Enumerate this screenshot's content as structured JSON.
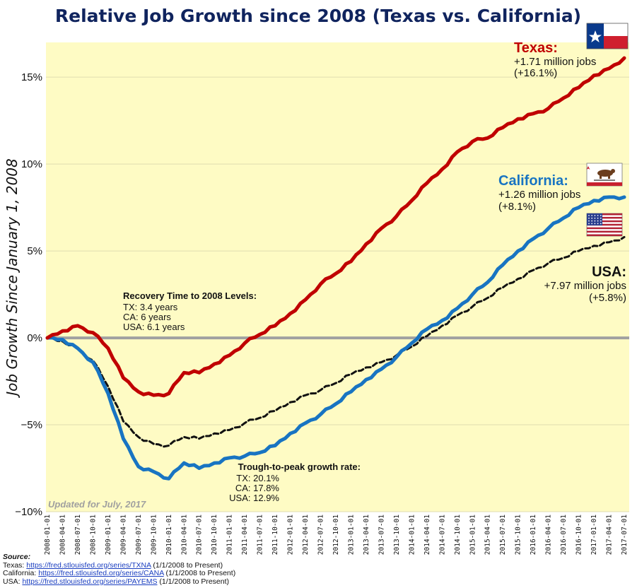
{
  "chart_data": {
    "type": "line",
    "title": "Relative Job Growth since 2008 (Texas vs. California)",
    "ylabel": "Job Growth Since January 1, 2008",
    "xlabel": "",
    "ylim": [
      -10,
      17
    ],
    "yticks": [
      {
        "value": 15,
        "label": "15%"
      },
      {
        "value": 10,
        "label": "10%"
      },
      {
        "value": 5,
        "label": "5%"
      },
      {
        "value": 0,
        "label": "0%"
      },
      {
        "value": -5,
        "label": "−5%"
      },
      {
        "value": -10,
        "label": "−10%"
      }
    ],
    "x_start": "2008-01-01",
    "x_end": "2017-07-01",
    "x": [
      "2008-01-01",
      "2008-04-01",
      "2008-07-01",
      "2008-10-01",
      "2009-01-01",
      "2009-04-01",
      "2009-07-01",
      "2009-10-01",
      "2010-01-01",
      "2010-04-01",
      "2010-07-01",
      "2010-10-01",
      "2011-01-01",
      "2011-04-01",
      "2011-07-01",
      "2011-10-01",
      "2012-01-01",
      "2012-04-01",
      "2012-07-01",
      "2012-10-01",
      "2013-01-01",
      "2013-04-01",
      "2013-07-01",
      "2013-10-01",
      "2014-01-01",
      "2014-04-01",
      "2014-07-01",
      "2014-10-01",
      "2015-01-01",
      "2015-04-01",
      "2015-07-01",
      "2015-10-01",
      "2016-01-01",
      "2016-04-01",
      "2016-07-01",
      "2016-10-01",
      "2017-01-01",
      "2017-04-01",
      "2017-07-01"
    ],
    "series": [
      {
        "name": "Texas",
        "color": "#c00000",
        "dash": "solid",
        "values": [
          0.0,
          0.4,
          0.7,
          0.3,
          -0.6,
          -2.3,
          -3.1,
          -3.3,
          -3.2,
          -2.0,
          -2.0,
          -1.5,
          -1.0,
          -0.3,
          0.2,
          0.7,
          1.4,
          2.2,
          3.1,
          3.7,
          4.4,
          5.4,
          6.3,
          7.0,
          7.9,
          8.9,
          9.7,
          10.7,
          11.3,
          11.5,
          12.1,
          12.6,
          12.9,
          13.2,
          13.8,
          14.4,
          15.1,
          15.5,
          16.1
        ]
      },
      {
        "name": "California",
        "color": "#1874c2",
        "dash": "solid",
        "values": [
          0.0,
          -0.1,
          -0.6,
          -1.4,
          -3.2,
          -5.8,
          -7.4,
          -7.7,
          -8.1,
          -7.2,
          -7.5,
          -7.2,
          -6.9,
          -6.8,
          -6.6,
          -6.2,
          -5.5,
          -4.9,
          -4.4,
          -3.8,
          -3.1,
          -2.4,
          -1.8,
          -1.1,
          -0.3,
          0.5,
          1.0,
          1.7,
          2.5,
          3.2,
          4.2,
          5.0,
          5.7,
          6.3,
          6.9,
          7.5,
          7.9,
          8.1,
          8.1
        ]
      },
      {
        "name": "USA",
        "color": "#111111",
        "dash": "dashed",
        "values": [
          0.0,
          -0.2,
          -0.6,
          -1.3,
          -2.8,
          -4.8,
          -5.7,
          -6.1,
          -6.2,
          -5.7,
          -5.8,
          -5.5,
          -5.3,
          -4.9,
          -4.6,
          -4.2,
          -3.7,
          -3.3,
          -3.0,
          -2.6,
          -2.1,
          -1.7,
          -1.4,
          -1.0,
          -0.5,
          0.1,
          0.7,
          1.3,
          1.8,
          2.3,
          2.9,
          3.4,
          3.9,
          4.3,
          4.6,
          5.0,
          5.3,
          5.5,
          5.8
        ]
      }
    ],
    "annotations": {
      "texas": {
        "name": "Texas:",
        "jobs": "+1.71 million jobs",
        "pct": "(+16.1%)"
      },
      "california": {
        "name": "California:",
        "jobs": "+1.26 million jobs",
        "pct": "(+8.1%)"
      },
      "usa": {
        "name": "USA:",
        "jobs": "+7.97 million jobs",
        "pct": "(+5.8%)"
      },
      "recovery": {
        "title": "Recovery Time to 2008 Levels:",
        "lines": [
          "TX: 3.4 years",
          "CA: 6 years",
          "USA: 6.1 years"
        ]
      },
      "trough": {
        "title": "Trough-to-peak growth rate:",
        "lines": [
          "TX: 20.1%",
          "CA: 17.8%",
          "USA: 12.9%"
        ]
      },
      "updated": "Updated for July, 2017"
    },
    "colors": {
      "plot_bg": "#fefbc4",
      "zero_line": "#a0a0a0",
      "grid": "#e0ddb0",
      "title": "#10245e"
    }
  },
  "source": {
    "label": "Source:",
    "lines": [
      {
        "prefix": "Texas: ",
        "url": "https://fred.stlouisfed.org/series/TXNA",
        "suffix": " (1/1/2008 to Present)"
      },
      {
        "prefix": "California: ",
        "url": "https://fred.stlouisfed.org/series/CANA",
        "suffix": " (1/1/2008 to Present)"
      },
      {
        "prefix": "USA: ",
        "url": "https://fred.stlouisfed.org/series/PAYEMS",
        "suffix": " (1/1/2008 to Present)"
      }
    ]
  }
}
